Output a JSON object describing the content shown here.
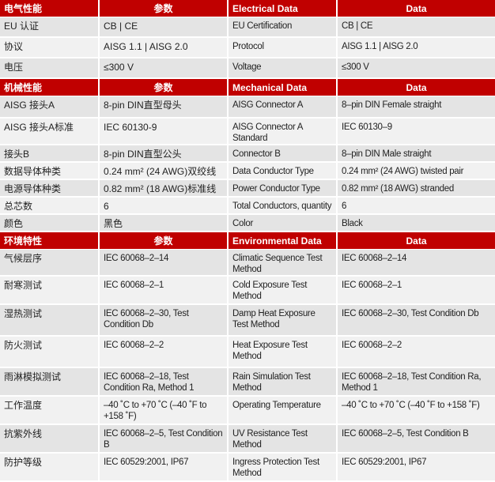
{
  "colors": {
    "header_bg": "#c00000",
    "row_dark": "#e4e4e4",
    "row_light": "#f1f1f1"
  },
  "sections": [
    {
      "header": [
        "电气性能",
        "参数",
        "Electrical Data",
        "Data"
      ],
      "rows": [
        [
          "EU 认证",
          "CB | CE",
          "EU Certification",
          "CB | CE"
        ],
        [
          "协议",
          "AISG 1.1  |  AISG 2.0",
          "Protocol",
          "AISG 1.1  |  AISG 2.0"
        ],
        [
          "电压",
          "≤300 V",
          "Voltage",
          "≤300 V"
        ]
      ]
    },
    {
      "header": [
        "机械性能",
        "参数",
        "Mechanical Data",
        "Data"
      ],
      "rows": [
        [
          "AISG 接头A",
          "8-pin DIN直型母头",
          "AISG Connector A",
          "8–pin DIN Female straight"
        ],
        [
          "AISG 接头A标准",
          "IEC 60130-9",
          "AISG Connector A Standard",
          "IEC 60130–9"
        ],
        [
          "接头B",
          "8-pin DIN直型公头",
          "Connector B",
          "8–pin DIN Male straight"
        ],
        [
          "数据导体种类",
          "0.24 mm² (24 AWG)双绞线",
          "Data Conductor Type",
          "0.24 mm² (24 AWG) twisted pair"
        ],
        [
          "电源导体种类",
          "0.82 mm² (18 AWG)标准线",
          "Power Conductor Type",
          "0.82 mm² (18 AWG) stranded"
        ],
        [
          "总芯数",
          "6",
          "Total Conductors, quantity",
          "6"
        ],
        [
          "颜色",
          "黑色",
          "Color",
          "Black"
        ]
      ]
    },
    {
      "header": [
        "环境特性",
        "参数",
        "Environmental Data",
        "Data"
      ],
      "rows": [
        [
          "气候层序",
          "IEC 60068–2–14",
          "Climatic Sequence Test Method",
          "IEC 60068–2–14"
        ],
        [
          "耐寒测试",
          "IEC 60068–2–1",
          "Cold Exposure Test Method",
          "IEC 60068–2–1"
        ],
        [
          "湿热测试",
          "IEC 60068–2–30, Test Condition Db",
          "Damp Heat Exposure Test Method",
          "IEC 60068–2–30, Test Condition Db"
        ],
        [
          "防火测试",
          "IEC 60068–2–2",
          "Heat Exposure Test Method",
          "IEC 60068–2–2"
        ],
        [
          "雨淋模拟测试",
          "IEC 60068–2–18, Test Condition Ra, Method 1",
          "Rain Simulation Test Method",
          "IEC 60068–2–18, Test Condition Ra, Method 1"
        ],
        [
          "工作温度",
          "–40 ˚C to +70 ˚C (–40 ˚F to +158 ˚F)",
          "Operating Temperature",
          "–40 ˚C to +70 ˚C (–40 ˚F to +158 ˚F)"
        ],
        [
          "抗紫外线",
          "IEC 60068–2–5, Test Condition B",
          "UV Resistance Test Method",
          "IEC 60068–2–5, Test Condition B"
        ],
        [
          "防护等级",
          "IEC 60529:2001, IP67",
          "Ingress Protection Test Method",
          "IEC 60529:2001, IP67"
        ]
      ]
    }
  ]
}
